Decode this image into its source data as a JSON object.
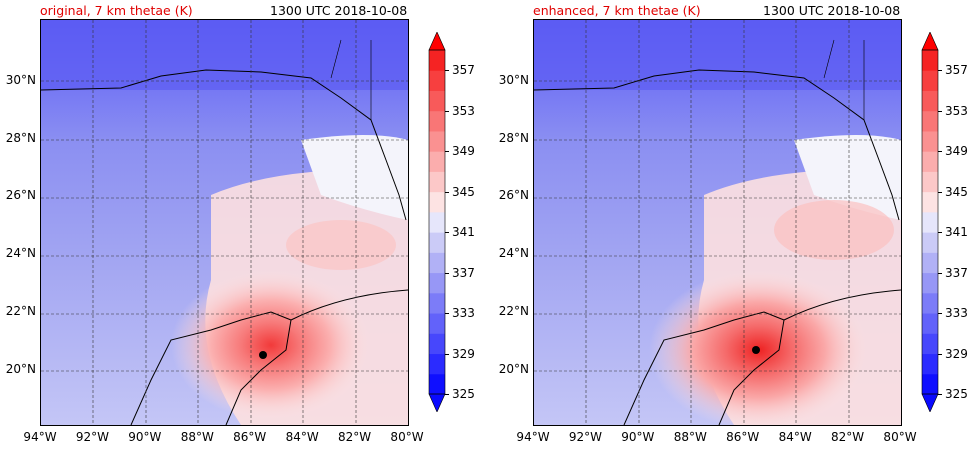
{
  "panels": [
    {
      "title_left": "original, 7 km thetae (K)",
      "title_right": "1300 UTC 2018-10-08",
      "storm_center": {
        "lon": -85.6,
        "lat": 20.6
      }
    },
    {
      "title_left": "enhanced, 7 km thetae (K)",
      "title_right": "1300 UTC 2018-10-08",
      "storm_center": {
        "lon": -85.6,
        "lat": 20.75
      }
    }
  ],
  "map": {
    "lon_range": [
      -94,
      -80
    ],
    "lat_range": [
      18.1,
      32.1
    ],
    "lon_ticks": [
      "94°W",
      "92°W",
      "90°W",
      "88°W",
      "86°W",
      "84°W",
      "82°W",
      "80°W"
    ],
    "lat_ticks": [
      "20°N",
      "22°N",
      "24°N",
      "26°N",
      "28°N",
      "30°N"
    ],
    "gridlines": true
  },
  "colorbar": {
    "levels": [
      325,
      327,
      329,
      331,
      333,
      335,
      337,
      339,
      341,
      343,
      345,
      347,
      349,
      351,
      353,
      355,
      357,
      359
    ],
    "labels": [
      "325",
      "329",
      "333",
      "337",
      "341",
      "345",
      "349",
      "353",
      "357"
    ],
    "colors": [
      "#0f0fff",
      "#2b2bff",
      "#4747fc",
      "#6262fa",
      "#7c7cf8",
      "#9797f6",
      "#b1b1f6",
      "#cbcbf7",
      "#e6e6fb",
      "#fde3e3",
      "#fcc8c8",
      "#fbadad",
      "#fa9191",
      "#f97676",
      "#f85a5a",
      "#f73f3f",
      "#f52323"
    ],
    "extend_low": "#0a0aff",
    "extend_high": "#ff0000"
  }
}
